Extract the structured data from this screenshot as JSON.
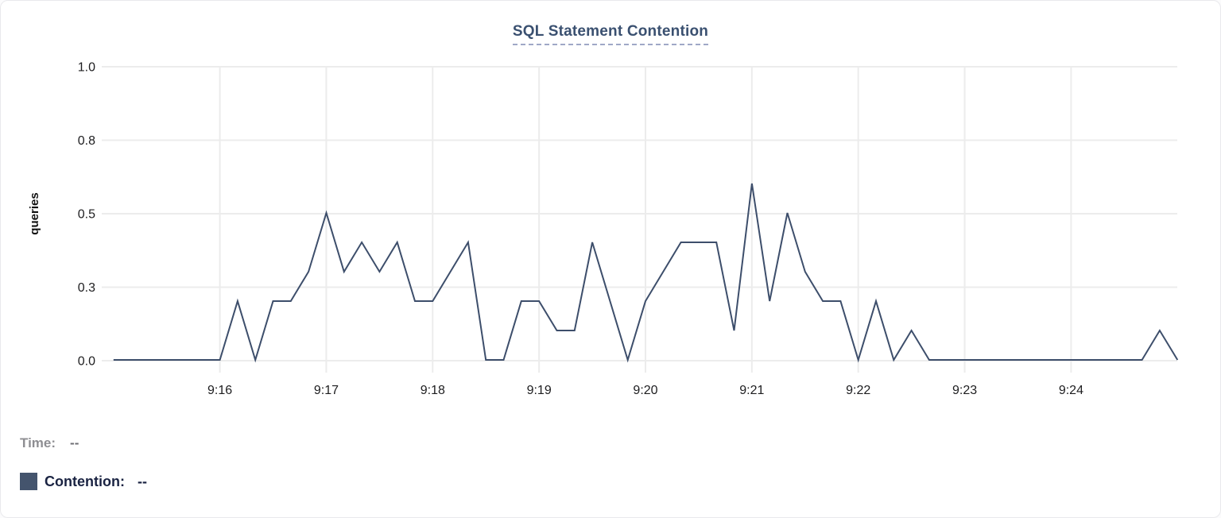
{
  "card": {
    "title": "SQL Statement Contention"
  },
  "legend": {
    "time_label": "Time:",
    "time_value": "--",
    "contention_label": "Contention:",
    "contention_value": "--"
  },
  "colors": {
    "line": "#3d4e6b",
    "swatch": "#44546d",
    "title_text": "#3a5070",
    "title_underline": "#9fa8c7",
    "grid": "#ececec",
    "axis_text": "#1d1d1f",
    "time_label_text": "#8e8e92",
    "time_value_text": "#6e6e73",
    "contention_text": "#1a2342"
  },
  "chart_data": {
    "type": "line",
    "title": "SQL Statement Contention",
    "xlabel": "",
    "ylabel": "queries",
    "ylim": [
      0,
      1.0
    ],
    "grid": true,
    "legend_position": "bottom-left",
    "yticks": {
      "values": [
        0,
        0.25,
        0.5,
        0.75,
        1.0
      ],
      "labels": [
        "0.0",
        "0.3",
        "0.5",
        "0.8",
        "1.0"
      ]
    },
    "xticks": [
      "9:16",
      "9:17",
      "9:18",
      "9:19",
      "9:20",
      "9:21",
      "9:22",
      "9:23",
      "9:24"
    ],
    "x_start": "9:15:00",
    "x_end": "9:25:00",
    "sample_interval_seconds": 10,
    "series": [
      {
        "name": "Contention",
        "unit": "queries",
        "color": "#3d4e6b",
        "values": [
          0,
          0,
          0,
          0,
          0,
          0,
          0,
          0.2,
          0,
          0.2,
          0.2,
          0.3,
          0.5,
          0.3,
          0.4,
          0.3,
          0.4,
          0.2,
          0.2,
          0.3,
          0.4,
          0,
          0,
          0.2,
          0.2,
          0.1,
          0.1,
          0.4,
          0.2,
          0,
          0.2,
          0.3,
          0.4,
          0.4,
          0.4,
          0.1,
          0.6,
          0.2,
          0.5,
          0.3,
          0.2,
          0.2,
          0,
          0.2,
          0,
          0.1,
          0,
          0,
          0,
          0,
          0,
          0,
          0,
          0,
          0,
          0,
          0,
          0,
          0,
          0.1,
          0
        ]
      }
    ]
  }
}
